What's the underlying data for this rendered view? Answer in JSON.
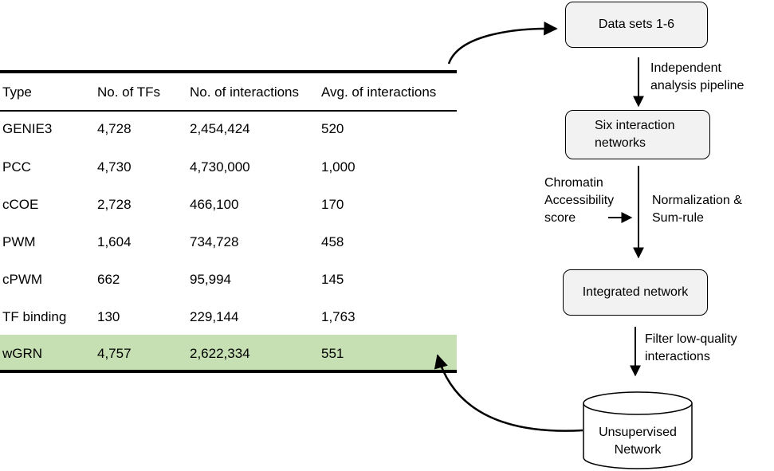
{
  "table": {
    "headers": [
      "Type",
      "No. of TFs",
      "No. of interactions",
      "Avg. of interactions"
    ],
    "rows": [
      [
        "GENIE3",
        "4,728",
        "2,454,424",
        "520"
      ],
      [
        "PCC",
        "4,730",
        "4,730,000",
        "1,000"
      ],
      [
        "cCOE",
        "2,728",
        "466,100",
        "170"
      ],
      [
        "PWM",
        "1,604",
        "734,728",
        "458"
      ],
      [
        "cPWM",
        "662",
        "95,994",
        "145"
      ],
      [
        "TF binding",
        "130",
        "229,144",
        "1,763"
      ],
      [
        "wGRN",
        "4,757",
        "2,622,334",
        "551"
      ]
    ],
    "highlight_color": "#c6e0b4"
  },
  "flow": {
    "datasets": "Data sets 1-6",
    "pipeline_line1": "Independent",
    "pipeline_line2": "analysis pipeline",
    "six_line1": "Six interaction",
    "six_line2": "networks",
    "chromatin_line1": "Chromatin",
    "chromatin_line2": "Accessibility",
    "chromatin_line3": "score",
    "norm_line1": "Normalization &",
    "norm_line2": "Sum-rule",
    "integrated": "Integrated network",
    "filter_line1": "Filter low-quality",
    "filter_line2": "interactions",
    "unsup_line1": "Unsupervised",
    "unsup_line2": "Network"
  },
  "box_fill": "#f2f2f2"
}
